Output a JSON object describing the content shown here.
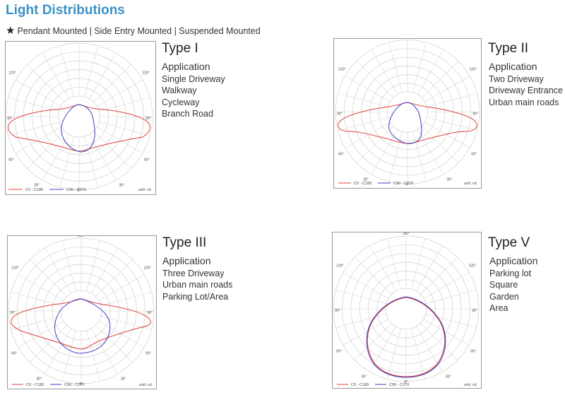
{
  "header": {
    "title": "Light Distributions",
    "star_icon": "star-icon",
    "subtitle": "Pendant Mounted | Side Entry Mounted | Suspended Mounted"
  },
  "legend": {
    "c0": "C0 - C180",
    "c90": "C90 - C270",
    "unit": "unit: cd",
    "c0_color": "#e0413a",
    "c90_color": "#3b3fc4"
  },
  "polar_labels": [
    "180°",
    "120°",
    "120°",
    "90°",
    "90°",
    "60°",
    "60°",
    "30°",
    "30°",
    "0°"
  ],
  "types": [
    {
      "name": "Type I",
      "application_label": "Application",
      "items": [
        "Single Driveway",
        "Walkway",
        "Cycleway",
        "Branch Road"
      ]
    },
    {
      "name": "Type II",
      "application_label": "Application",
      "items": [
        "Two Driveway",
        "Driveway Entrance",
        "Urban main roads"
      ]
    },
    {
      "name": "Type III",
      "application_label": "Application",
      "items": [
        "Three Driveway",
        "Urban main roads",
        "Parking Lot/Area"
      ]
    },
    {
      "name": "Type V",
      "application_label": "Application",
      "items": [
        "Parking lot",
        "Square",
        "Garden",
        "Area"
      ]
    }
  ]
}
